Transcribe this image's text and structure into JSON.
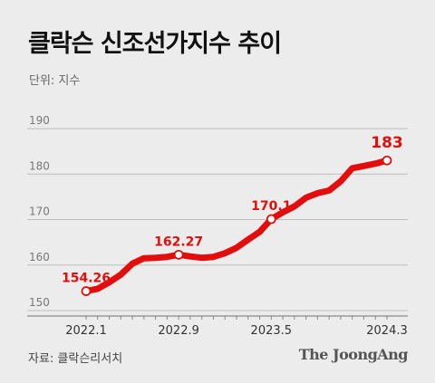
{
  "title": "클락슨 신조선가지수 추이",
  "unit_label": "단위: 지수",
  "source": "자료: 클락슨리서치",
  "logo": "The JoongAng",
  "colors": {
    "line": "#e20e0e",
    "label": "#e20e0e",
    "grid": "#bdbdbd",
    "axis": "#777777",
    "background": "#ececec"
  },
  "chart_data": {
    "type": "line",
    "title": "클락슨 신조선가지수 추이",
    "unit": "지수",
    "x": [
      "2022.1",
      "2022.2",
      "2022.3",
      "2022.4",
      "2022.5",
      "2022.6",
      "2022.7",
      "2022.8",
      "2022.9",
      "2022.10",
      "2022.11",
      "2022.12",
      "2023.1",
      "2023.2",
      "2023.3",
      "2023.4",
      "2023.5",
      "2023.6",
      "2023.7",
      "2023.8",
      "2023.9",
      "2023.10",
      "2023.11",
      "2023.12",
      "2024.1",
      "2024.2",
      "2024.3"
    ],
    "x_tick_labels": [
      "2022.1",
      "2022.9",
      "2023.5",
      "2024.3"
    ],
    "y_ticks": [
      150,
      160,
      170,
      180,
      190
    ],
    "ylim": [
      149,
      193
    ],
    "grid": true,
    "series": [
      {
        "values": [
          154.26,
          154.8,
          156.2,
          157.9,
          160.3,
          161.5,
          161.6,
          161.8,
          162.27,
          161.9,
          161.6,
          161.8,
          162.6,
          163.8,
          165.6,
          167.3,
          170.1,
          171.6,
          172.9,
          174.8,
          175.8,
          176.4,
          178.4,
          181.3,
          181.8,
          182.3,
          183
        ]
      }
    ],
    "annotations": [
      {
        "x": "2022.1",
        "value": 154.26,
        "text": "154.26"
      },
      {
        "x": "2022.9",
        "value": 162.27,
        "text": "162.27"
      },
      {
        "x": "2023.5",
        "value": 170.1,
        "text": "170.1"
      },
      {
        "x": "2024.3",
        "value": 183,
        "text": "183"
      }
    ]
  }
}
